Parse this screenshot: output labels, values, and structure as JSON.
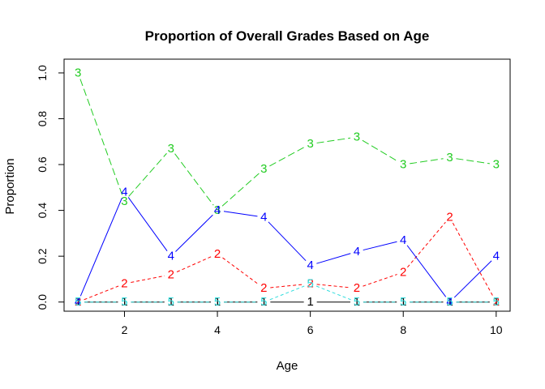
{
  "chart_data": {
    "type": "line",
    "title": "Proportion of Overall Grades Based on Age",
    "xlabel": "Age",
    "ylabel": "Proportion",
    "xlim": [
      0.7,
      10.3
    ],
    "ylim": [
      -0.04,
      1.06
    ],
    "x_ticks": [
      "2",
      "4",
      "6",
      "8",
      "10"
    ],
    "y_ticks": [
      "0.0",
      "0.2",
      "0.4",
      "0.6",
      "0.8",
      "1.0"
    ],
    "x": [
      1,
      2,
      3,
      4,
      5,
      6,
      7,
      8,
      9,
      10
    ],
    "legend": "none",
    "grid": false,
    "series": [
      {
        "name": "1",
        "color": "#000000",
        "dash": "solid",
        "values": [
          0,
          0,
          0,
          0,
          0,
          0,
          0,
          0,
          0,
          0
        ]
      },
      {
        "name": "2",
        "color": "#ff0000",
        "dash": "dashed",
        "values": [
          0,
          0.08,
          0.12,
          0.21,
          0.06,
          0.08,
          0.06,
          0.13,
          0.37,
          0
        ]
      },
      {
        "name": "3",
        "color": "#22cc22",
        "dash": "longdash",
        "values": [
          1.0,
          0.44,
          0.67,
          0.4,
          0.58,
          0.69,
          0.72,
          0.6,
          0.63,
          0.6
        ]
      },
      {
        "name": "4",
        "color": "#0000ff",
        "dash": "solid",
        "values": [
          0,
          0.48,
          0.2,
          0.4,
          0.37,
          0.16,
          0.22,
          0.27,
          0,
          0.2
        ]
      },
      {
        "name": "5",
        "color": "#33dddd",
        "dash": "dashed",
        "values": [
          0,
          0,
          0,
          0,
          0,
          0.08,
          0,
          0,
          0,
          0
        ]
      }
    ]
  }
}
